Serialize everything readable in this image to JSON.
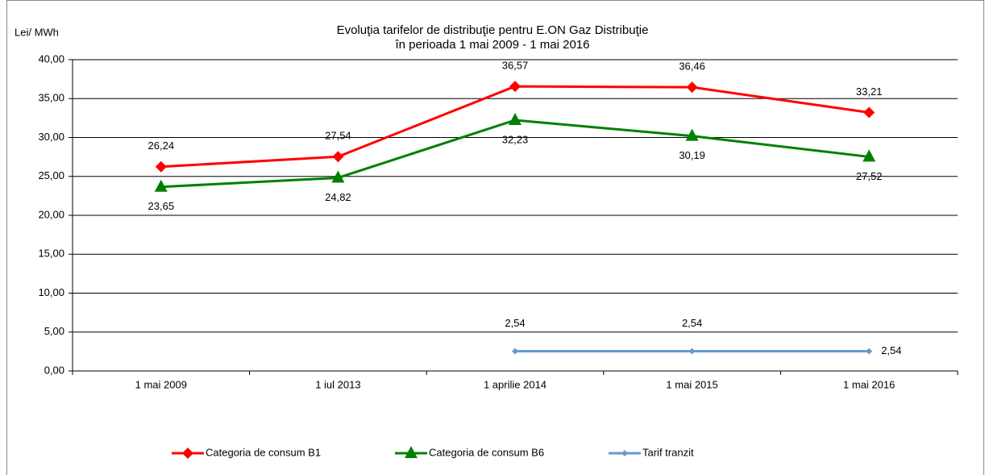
{
  "chart_data": {
    "type": "line",
    "title": "Evoluţia  tarifelor de distribuţie pentru E.ON Gaz Distribuţie",
    "subtitle": "în perioada 1 mai 2009 - 1 mai 2016",
    "y_label": "Lei/ MWh",
    "categories": [
      "1 mai 2009",
      "1 iul 2013",
      "1 aprilie 2014",
      "1 mai 2015",
      "1 mai 2016"
    ],
    "series": [
      {
        "name": "Categoria de consum B1",
        "color": "#ff0000",
        "marker": "diamond",
        "values": [
          26.24,
          27.54,
          36.57,
          36.46,
          33.21
        ],
        "value_labels": [
          "26,24",
          "27,54",
          "36,57",
          "36,46",
          "33,21"
        ]
      },
      {
        "name": "Categoria de consum B6",
        "color": "#008000",
        "marker": "triangle",
        "values": [
          23.65,
          24.82,
          32.23,
          30.19,
          27.52
        ],
        "value_labels": [
          "23,65",
          "24,82",
          "32,23",
          "30,19",
          "27,52"
        ]
      },
      {
        "name": "Tarif tranzit",
        "color": "#6699cc",
        "marker": "small-diamond",
        "values": [
          null,
          null,
          2.54,
          2.54,
          2.54
        ],
        "value_labels": [
          null,
          null,
          "2,54",
          "2,54",
          "2,54"
        ]
      }
    ],
    "ylim": [
      0,
      40
    ],
    "yticks": [
      {
        "value": 0,
        "label": "0,00"
      },
      {
        "value": 5,
        "label": "5,00"
      },
      {
        "value": 10,
        "label": "10,00"
      },
      {
        "value": 15,
        "label": "15,00"
      },
      {
        "value": 20,
        "label": "20,00"
      },
      {
        "value": 25,
        "label": "25,00"
      },
      {
        "value": 30,
        "label": "30,00"
      },
      {
        "value": 35,
        "label": "35,00"
      },
      {
        "value": 40,
        "label": "40,00"
      }
    ],
    "grid": true,
    "legend": "bottom"
  }
}
